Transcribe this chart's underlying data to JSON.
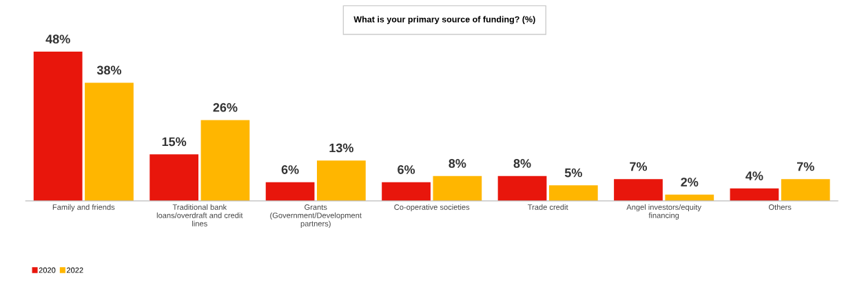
{
  "chart_data": {
    "type": "bar",
    "title": "What is your primary source of funding? (%)",
    "categories": [
      "Family and friends",
      "Traditional bank\nloans/overdraft and credit\nlines",
      "Grants\n(Government/Development\npartners)",
      "Co-operative societies",
      "Trade credit",
      "Angel investors/equity\nfinancing",
      "Others"
    ],
    "series": [
      {
        "name": "2020",
        "color": "#e8160c",
        "values": [
          48,
          15,
          6,
          6,
          8,
          7,
          4
        ],
        "value_labels": [
          "48%",
          "15%",
          "6%",
          "6%",
          "8%",
          "7%",
          "4%"
        ]
      },
      {
        "name": "2022",
        "color": "#ffb600",
        "values": [
          38,
          26,
          13,
          8,
          5,
          2,
          7
        ],
        "value_labels": [
          "38%",
          "26%",
          "13%",
          "8%",
          "5%",
          "2%",
          "7%"
        ]
      }
    ],
    "legend": "bottom left",
    "grid": false
  }
}
